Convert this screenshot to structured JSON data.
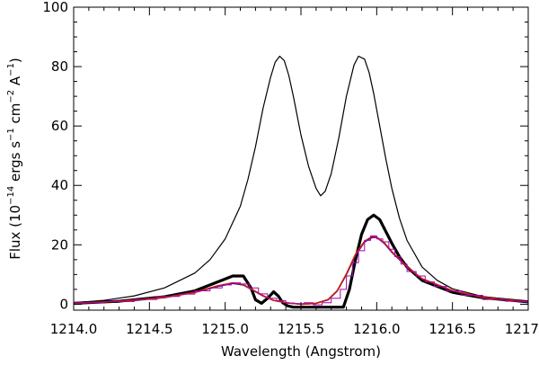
{
  "chart_data": {
    "type": "line",
    "title": "",
    "xlabel": "Wavelength (Angstrom)",
    "ylabel_parts": {
      "p1": "Flux (10",
      "e1": "−14",
      "p2": " ergs s",
      "e2": "−1",
      "p3": " cm",
      "e3": "−2",
      "p4": " A",
      "e4": "−1",
      "p5": ")"
    },
    "xlim": [
      1214.0,
      1217.0
    ],
    "ylim": [
      -2,
      100
    ],
    "x_ticks": [
      {
        "value": 1214.0,
        "label": "1214.0"
      },
      {
        "value": 1214.5,
        "label": "1214.5"
      },
      {
        "value": 1215.0,
        "label": "1215.0"
      },
      {
        "value": 1215.5,
        "label": "1215.5"
      },
      {
        "value": 1216.0,
        "label": "1216.0"
      },
      {
        "value": 1216.5,
        "label": "1216.5"
      },
      {
        "value": 1217.0,
        "label": "1217.0"
      }
    ],
    "x_minor_step": 0.1,
    "y_ticks": [
      {
        "value": 0,
        "label": "0"
      },
      {
        "value": 20,
        "label": "20"
      },
      {
        "value": 40,
        "label": "40"
      },
      {
        "value": 60,
        "label": "60"
      },
      {
        "value": 80,
        "label": "80"
      },
      {
        "value": 100,
        "label": "100"
      }
    ],
    "y_minor_step": 5,
    "series": [
      {
        "color": "#000000",
        "style": "thin",
        "x": [
          1214.0,
          1214.2,
          1214.4,
          1214.6,
          1214.8,
          1214.9,
          1215.0,
          1215.1,
          1215.15,
          1215.2,
          1215.25,
          1215.3,
          1215.33,
          1215.36,
          1215.39,
          1215.42,
          1215.45,
          1215.5,
          1215.55,
          1215.6,
          1215.63,
          1215.66,
          1215.7,
          1215.75,
          1215.8,
          1215.85,
          1215.88,
          1215.92,
          1215.95,
          1215.98,
          1216.02,
          1216.06,
          1216.1,
          1216.15,
          1216.2,
          1216.3,
          1216.4,
          1216.5,
          1216.7,
          1216.9,
          1217.0
        ],
        "y": [
          0.5,
          1.3,
          2.8,
          5.5,
          10.5,
          15.0,
          22.0,
          33.0,
          42.0,
          53.0,
          66.0,
          76.5,
          81.5,
          83.5,
          82.0,
          77.0,
          70.0,
          57.0,
          46.5,
          39.0,
          36.5,
          38.0,
          44.0,
          56.0,
          70.0,
          80.5,
          83.5,
          82.5,
          78.0,
          71.0,
          60.0,
          49.0,
          39.0,
          29.0,
          21.5,
          12.5,
          8.0,
          5.2,
          2.6,
          1.4,
          1.0
        ]
      },
      {
        "color": "#000000",
        "style": "thick",
        "x": [
          1214.0,
          1214.3,
          1214.6,
          1214.8,
          1214.95,
          1215.05,
          1215.12,
          1215.17,
          1215.2,
          1215.24,
          1215.28,
          1215.32,
          1215.35,
          1215.38,
          1215.41,
          1215.45,
          1215.5,
          1215.78,
          1215.82,
          1215.86,
          1215.9,
          1215.94,
          1215.98,
          1216.02,
          1216.05,
          1216.1,
          1216.15,
          1216.2,
          1216.3,
          1216.5,
          1216.7,
          1217.0
        ],
        "y": [
          0.3,
          1.0,
          2.5,
          4.5,
          7.5,
          9.5,
          9.5,
          5.5,
          1.5,
          0.3,
          2.0,
          4.2,
          2.8,
          0.5,
          -0.5,
          -1.0,
          -1.0,
          -1.0,
          5.0,
          15.0,
          23.5,
          28.5,
          30.0,
          28.5,
          25.5,
          20.5,
          16.0,
          12.5,
          8.0,
          4.0,
          2.2,
          0.8
        ]
      },
      {
        "color": "#0000cc",
        "style": "medium",
        "x": [
          1214.0,
          1214.3,
          1214.6,
          1214.8,
          1214.95,
          1215.05,
          1215.12,
          1215.18,
          1215.25,
          1215.32,
          1215.4,
          1215.5,
          1215.6,
          1215.68,
          1215.74,
          1215.8,
          1215.86,
          1215.92,
          1215.97,
          1216.0,
          1216.05,
          1216.1,
          1216.2,
          1216.3,
          1216.5,
          1216.7,
          1217.0
        ],
        "y": [
          0.3,
          1.0,
          2.3,
          4.0,
          6.0,
          7.0,
          6.5,
          4.8,
          2.8,
          1.3,
          0.5,
          0.0,
          0.3,
          1.5,
          4.5,
          10.0,
          16.5,
          21.0,
          22.5,
          22.5,
          20.5,
          17.5,
          12.5,
          8.5,
          4.5,
          2.2,
          0.7
        ]
      },
      {
        "color": "#cc2200",
        "style": "medium",
        "x": [
          1214.0,
          1214.3,
          1214.6,
          1214.8,
          1214.95,
          1215.05,
          1215.12,
          1215.18,
          1215.25,
          1215.32,
          1215.4,
          1215.5,
          1215.6,
          1215.68,
          1215.74,
          1215.8,
          1215.86,
          1215.92,
          1215.97,
          1216.0,
          1216.05,
          1216.1,
          1216.2,
          1216.3,
          1216.5,
          1216.7,
          1217.0
        ],
        "y": [
          0.3,
          1.0,
          2.3,
          4.0,
          6.2,
          7.2,
          6.6,
          4.9,
          2.9,
          1.3,
          0.5,
          0.0,
          0.3,
          1.6,
          4.6,
          10.2,
          16.8,
          21.2,
          22.8,
          22.6,
          20.7,
          17.7,
          12.6,
          8.6,
          4.6,
          2.3,
          0.8
        ]
      },
      {
        "color": "#aa00aa",
        "style": "histogram",
        "x": [
          1214.0,
          1214.2,
          1214.4,
          1214.55,
          1214.7,
          1214.8,
          1214.9,
          1214.98,
          1215.04,
          1215.1,
          1215.16,
          1215.22,
          1215.28,
          1215.34,
          1215.4,
          1215.46,
          1215.52,
          1215.58,
          1215.64,
          1215.7,
          1215.76,
          1215.8,
          1215.84,
          1215.88,
          1215.92,
          1215.96,
          1216.0,
          1216.04,
          1216.08,
          1216.12,
          1216.16,
          1216.2,
          1216.26,
          1216.32,
          1216.38,
          1216.46,
          1216.56,
          1216.7,
          1216.85,
          1217.0
        ],
        "y": [
          0.5,
          0.9,
          1.6,
          2.6,
          3.4,
          4.5,
          5.5,
          6.5,
          7.2,
          6.8,
          5.5,
          3.5,
          2.0,
          1.2,
          0.4,
          0.2,
          0.5,
          -0.2,
          0.5,
          2.0,
          5.0,
          9.5,
          14.0,
          18.0,
          21.5,
          23.0,
          22.0,
          21.0,
          18.5,
          16.0,
          13.5,
          11.0,
          9.5,
          7.5,
          6.0,
          4.5,
          3.0,
          1.6,
          1.0,
          0.6
        ]
      }
    ]
  }
}
